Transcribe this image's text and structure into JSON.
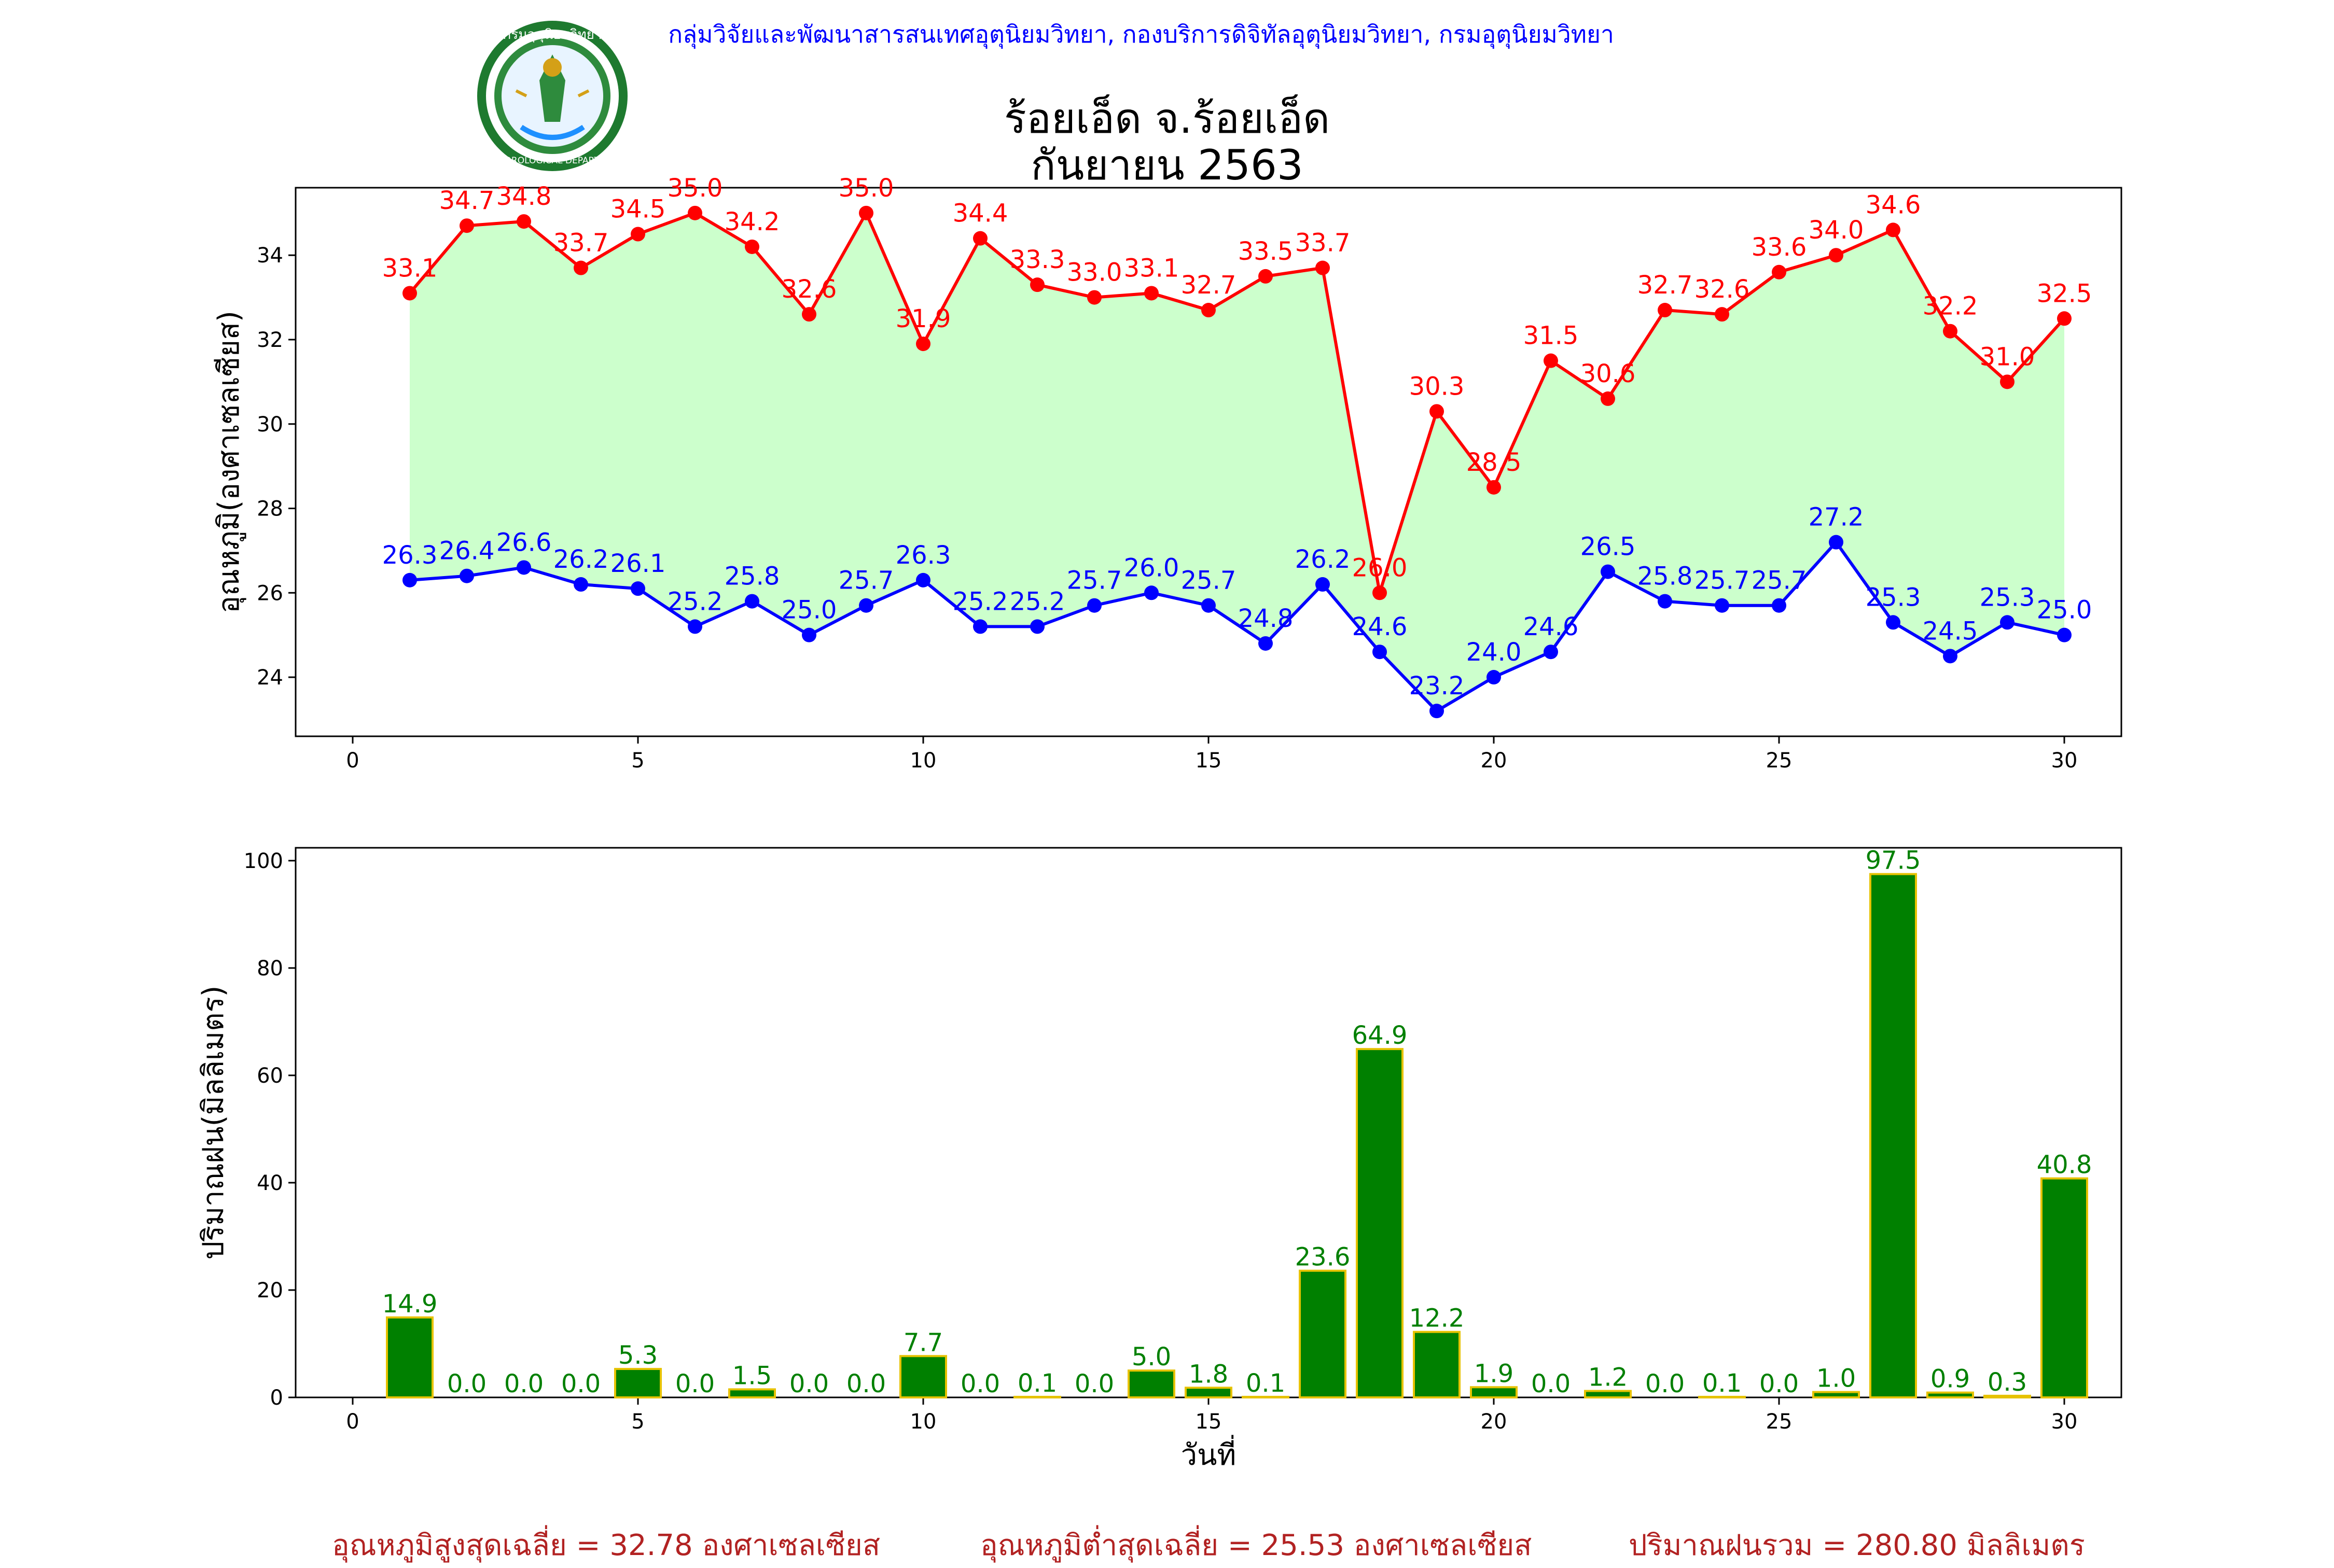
{
  "header": {
    "org": "กลุ่มวิจัยและพัฒนาสารสนเทศอุตุนิยมวิทยา, กองบริการดิจิทัลอุตุนิยมวิทยา, กรมอุตุนิยมวิทยา",
    "title": "ร้อยเอ็ด จ.ร้อยเอ็ด",
    "subtitle": "กันยายน 2563",
    "logo_text": "กรมอุตุนิยมวิทยา",
    "logo_text_en": "METEOROLOGICAL DEPARTMENT"
  },
  "chart_data": [
    {
      "type": "line",
      "ylabel": "อุณหภูมิ(องศาเซลเซียส)",
      "xlim": [
        -1,
        31
      ],
      "ylim": [
        22.6,
        35.6
      ],
      "xticks": [
        0,
        5,
        10,
        15,
        20,
        25,
        30
      ],
      "yticks": [
        24,
        26,
        28,
        30,
        32,
        34
      ],
      "x": [
        1,
        2,
        3,
        4,
        5,
        6,
        7,
        8,
        9,
        10,
        11,
        12,
        13,
        14,
        15,
        16,
        17,
        18,
        19,
        20,
        21,
        22,
        23,
        24,
        25,
        26,
        27,
        28,
        29,
        30
      ],
      "series": [
        {
          "color": "#ff0000",
          "values": [
            33.1,
            34.7,
            34.8,
            33.7,
            34.5,
            35.0,
            34.2,
            32.6,
            35.0,
            31.9,
            34.4,
            33.3,
            33.0,
            33.1,
            32.7,
            33.5,
            33.7,
            26.0,
            30.3,
            28.5,
            31.5,
            30.6,
            32.7,
            32.6,
            33.6,
            34.0,
            34.6,
            32.2,
            31.0,
            32.5
          ]
        },
        {
          "color": "#0000ff",
          "values": [
            26.3,
            26.4,
            26.6,
            26.2,
            26.1,
            25.2,
            25.8,
            25.0,
            25.7,
            26.3,
            25.2,
            25.2,
            25.7,
            26.0,
            25.7,
            24.8,
            26.2,
            24.6,
            23.2,
            24.0,
            24.6,
            26.5,
            25.8,
            25.7,
            25.7,
            27.2,
            25.3,
            24.5,
            25.3,
            25.0
          ]
        }
      ],
      "fill_color": "#ccffcc"
    },
    {
      "type": "bar",
      "ylabel": "ปริมาณฝน(มิลลิเมตร)",
      "xlabel": "วันที่",
      "xlim": [
        -1,
        31
      ],
      "ylim": [
        0,
        102.4
      ],
      "xticks": [
        0,
        5,
        10,
        15,
        20,
        25,
        30
      ],
      "yticks": [
        0,
        20,
        40,
        60,
        80,
        100
      ],
      "x": [
        1,
        2,
        3,
        4,
        5,
        6,
        7,
        8,
        9,
        10,
        11,
        12,
        13,
        14,
        15,
        16,
        17,
        18,
        19,
        20,
        21,
        22,
        23,
        24,
        25,
        26,
        27,
        28,
        29,
        30
      ],
      "values": [
        14.9,
        0.0,
        0.0,
        0.0,
        5.3,
        0.0,
        1.5,
        0.0,
        0.0,
        7.7,
        0.0,
        0.1,
        0.0,
        5.0,
        1.8,
        0.1,
        23.6,
        64.9,
        12.2,
        1.9,
        0.0,
        1.2,
        0.0,
        0.1,
        0.0,
        1.0,
        97.5,
        0.9,
        0.3,
        40.8
      ],
      "bar_color": "#008000",
      "edge_color": "#e6c200",
      "label_color": "#008000"
    }
  ],
  "footer": {
    "avg_max": "อุณหภูมิสูงสุดเฉลี่ย = 32.78 องศาเซลเซียส",
    "avg_min": "อุณหภูมิต่ำสุดเฉลี่ย = 25.53 องศาเซลเซียส",
    "total_rain": "ปริมาณฝนรวม = 280.80 มิลลิเมตร"
  }
}
